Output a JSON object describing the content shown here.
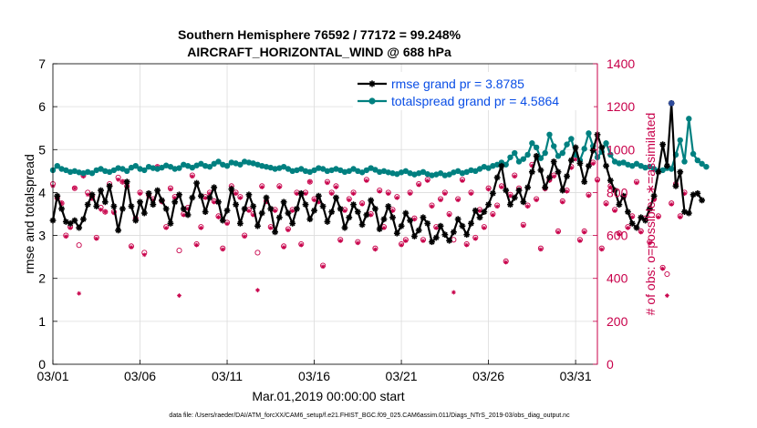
{
  "chart_data": {
    "type": "line",
    "title_line1": "Southern Hemisphere 76592 / 77172 = 99.248%",
    "title_line2": "AIRCRAFT_HORIZONTAL_WIND @ 688 hPa",
    "xlabel": "Mar.01,2019 00:00:00 start",
    "ylabel_left": "rmse and totalspread",
    "ylabel_right": "# of obs: o=possible; ∗=assimilated",
    "footnote": "data file: /Users/raeder/DAI/ATM_forcXX/CAM6_setup/f.e21.FHIST_BGC.f09_025.CAM6assim.011/Diags_NTrS_2019-03/obs_diag_output.nc",
    "x_range": [
      0,
      31.25
    ],
    "x_ticks": [
      {
        "value": 0,
        "label": "03/01"
      },
      {
        "value": 5,
        "label": "03/06"
      },
      {
        "value": 10,
        "label": "03/11"
      },
      {
        "value": 15,
        "label": "03/16"
      },
      {
        "value": 20,
        "label": "03/21"
      },
      {
        "value": 25,
        "label": "03/26"
      },
      {
        "value": 30,
        "label": "03/31"
      }
    ],
    "ylim_left": [
      0,
      7
    ],
    "y_ticks_left": [
      "0",
      "1",
      "2",
      "3",
      "4",
      "5",
      "6",
      "7"
    ],
    "ylim_right": [
      0,
      1400
    ],
    "y_ticks_right": [
      "0",
      "200",
      "400",
      "600",
      "800",
      "1000",
      "1200",
      "1400"
    ],
    "time_step_days": 0.25,
    "legend": [
      {
        "label": "rmse grand pr = 3.8785",
        "color": "#000000",
        "marker": "star"
      },
      {
        "label": "totalspread grand pr = 4.5864",
        "color": "#008080",
        "marker": "circle"
      }
    ],
    "colors": {
      "rmse": "#000000",
      "totalspread": "#008080",
      "obs": "#c8004a"
    },
    "series": [
      {
        "name": "rmse",
        "values": [
          3.35,
          3.92,
          3.62,
          3.32,
          3.28,
          3.35,
          3.18,
          3.38,
          3.72,
          3.95,
          3.68,
          4.05,
          3.78,
          4.15,
          3.68,
          3.12,
          3.62,
          4.25,
          3.68,
          3.35,
          3.78,
          3.52,
          3.98,
          3.72,
          4.05,
          3.82,
          3.62,
          3.28,
          3.78,
          3.95,
          3.62,
          3.48,
          3.88,
          4.22,
          3.92,
          3.55,
          3.88,
          4.12,
          3.78,
          3.35,
          3.58,
          4.08,
          3.72,
          3.28,
          3.62,
          3.95,
          3.68,
          3.22,
          3.52,
          3.88,
          3.62,
          3.08,
          3.42,
          3.78,
          3.52,
          3.28,
          3.62,
          3.98,
          3.72,
          3.38,
          3.58,
          3.92,
          3.68,
          3.32,
          3.55,
          3.88,
          3.62,
          3.18,
          3.42,
          3.72,
          3.55,
          3.25,
          3.48,
          3.82,
          3.62,
          3.15,
          3.38,
          3.68,
          3.42,
          3.05,
          3.22,
          3.52,
          3.35,
          2.98,
          3.12,
          3.42,
          3.28,
          2.85,
          2.95,
          3.22,
          3.02,
          2.88,
          3.08,
          3.38,
          3.22,
          3.02,
          3.28,
          3.58,
          3.42,
          3.55,
          3.72,
          3.98,
          4.35,
          4.62,
          4.05,
          3.72,
          3.88,
          4.05,
          3.78,
          4.12,
          4.48,
          4.85,
          4.52,
          4.12,
          4.35,
          4.72,
          4.48,
          4.05,
          4.38,
          4.75,
          5.05,
          4.68,
          4.25,
          4.62,
          4.98,
          5.35,
          5.05,
          4.62,
          4.28,
          4.05,
          3.72,
          3.92,
          3.55,
          3.28,
          3.18,
          3.42,
          3.35,
          3.62,
          3.92,
          4.48,
          5.12,
          4.62,
          6.08,
          4.15,
          4.48,
          3.55,
          3.52,
          3.95,
          3.98,
          3.82
        ],
        "obs_possible": [
          840,
          775,
          750,
          600,
          640,
          820,
          555,
          880,
          800,
          780,
          590,
          730,
          710,
          840,
          710,
          870,
          850,
          830,
          550,
          680,
          800,
          520,
          790,
          770,
          920,
          760,
          640,
          820,
          780,
          530,
          700,
          730,
          880,
          560,
          640,
          780,
          800,
          760,
          690,
          540,
          660,
          830,
          800,
          780,
          600,
          720,
          700,
          520,
          830,
          760,
          640,
          720,
          830,
          550,
          630,
          720,
          800,
          560,
          800,
          850,
          770,
          760,
          460,
          850,
          800,
          830,
          580,
          720,
          770,
          800,
          570,
          750,
          860,
          700,
          540,
          810,
          640,
          800,
          720,
          780,
          560,
          580,
          800,
          680,
          840,
          580,
          860,
          740,
          640,
          770,
          800,
          700,
          580,
          770,
          860,
          560,
          800,
          590,
          720,
          640,
          820,
          700,
          740,
          830,
          480,
          790,
          880,
          820,
          650,
          740,
          930,
          770,
          540,
          820,
          860,
          880,
          620,
          760,
          810,
          920,
          960,
          580,
          620,
          790,
          940,
          860,
          540,
          750,
          830,
          720,
          610,
          780,
          640,
          690,
          850,
          620,
          680,
          570,
          770,
          690,
          450,
          420,
          750,
          840,
          690,
          800
        ],
        "obs_assimilated": [
          830,
          770,
          750,
          595,
          635,
          820,
          330,
          875,
          790,
          770,
          585,
          720,
          710,
          830,
          705,
          860,
          850,
          825,
          545,
          675,
          795,
          510,
          780,
          765,
          920,
          755,
          635,
          815,
          775,
          320,
          695,
          725,
          875,
          555,
          635,
          775,
          795,
          755,
          685,
          535,
          655,
          825,
          795,
          775,
          595,
          715,
          695,
          345,
          825,
          755,
          635,
          715,
          825,
          545,
          625,
          715,
          795,
          555,
          795,
          850,
          765,
          755,
          455,
          845,
          795,
          825,
          575,
          715,
          765,
          795,
          565,
          745,
          855,
          695,
          535,
          805,
          635,
          795,
          715,
          775,
          555,
          575,
          795,
          675,
          835,
          575,
          855,
          735,
          635,
          765,
          795,
          695,
          335,
          765,
          855,
          555,
          795,
          585,
          715,
          635,
          815,
          695,
          735,
          825,
          475,
          785,
          875,
          815,
          645,
          735,
          925,
          765,
          535,
          815,
          855,
          875,
          615,
          755,
          805,
          915,
          955,
          575,
          615,
          785,
          935,
          855,
          535,
          745,
          825,
          715,
          605,
          775,
          635,
          685,
          845,
          615,
          675,
          565,
          765,
          685,
          445,
          320,
          745,
          835,
          685,
          795
        ]
      },
      {
        "name": "totalspread",
        "values": [
          4.52,
          4.62,
          4.55,
          4.52,
          4.48,
          4.5,
          4.47,
          4.45,
          4.48,
          4.45,
          4.52,
          4.55,
          4.5,
          4.48,
          4.52,
          4.57,
          4.55,
          4.5,
          4.58,
          4.62,
          4.55,
          4.52,
          4.6,
          4.57,
          4.55,
          4.58,
          4.63,
          4.6,
          4.55,
          4.57,
          4.65,
          4.62,
          4.58,
          4.63,
          4.67,
          4.62,
          4.6,
          4.67,
          4.72,
          4.65,
          4.62,
          4.7,
          4.68,
          4.65,
          4.72,
          4.7,
          4.68,
          4.65,
          4.62,
          4.6,
          4.58,
          4.55,
          4.57,
          4.6,
          4.55,
          4.5,
          4.52,
          4.55,
          4.5,
          4.48,
          4.52,
          4.57,
          4.55,
          4.5,
          4.52,
          4.55,
          4.52,
          4.48,
          4.5,
          4.55,
          4.5,
          4.47,
          4.52,
          4.57,
          4.53,
          4.48,
          4.5,
          4.47,
          4.45,
          4.43,
          4.47,
          4.5,
          4.45,
          4.42,
          4.45,
          4.48,
          4.43,
          4.4,
          4.42,
          4.45,
          4.4,
          4.42,
          4.47,
          4.5,
          4.45,
          4.48,
          4.52,
          4.5,
          4.55,
          4.6,
          4.57,
          4.62,
          4.65,
          4.7,
          4.65,
          4.82,
          4.92,
          4.72,
          4.78,
          4.88,
          5.15,
          5.05,
          4.8,
          4.92,
          5.35,
          5.08,
          4.85,
          4.92,
          5.12,
          5.25,
          4.88,
          4.75,
          5.02,
          5.38,
          5.08,
          4.82,
          4.95,
          5.15,
          4.88,
          4.72,
          4.68,
          4.7,
          4.65,
          4.62,
          4.67,
          4.62,
          4.58,
          4.6,
          4.55,
          4.5,
          4.52,
          4.57,
          4.55,
          4.88,
          5.22,
          4.72,
          5.72,
          4.9,
          4.75,
          4.67,
          4.6
        ]
      }
    ]
  }
}
